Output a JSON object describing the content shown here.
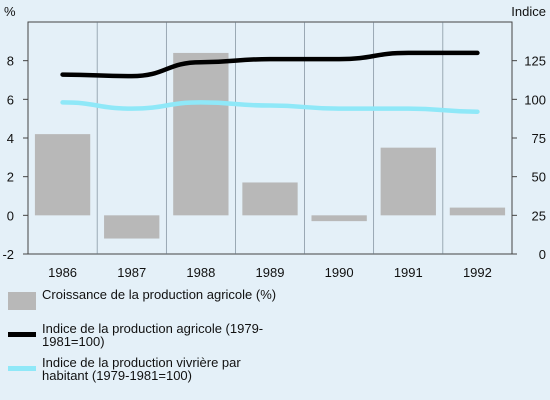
{
  "chart_data": {
    "type": "bar",
    "categories": [
      "1986",
      "1987",
      "1988",
      "1989",
      "1990",
      "1991",
      "1992"
    ],
    "left_axis": {
      "unit": "%",
      "ylim": [
        -2,
        10
      ],
      "ticks": [
        -2,
        0,
        2,
        4,
        6,
        8
      ]
    },
    "right_axis": {
      "unit": "Indice",
      "ylim": [
        0,
        150
      ],
      "ticks": [
        0,
        25,
        50,
        75,
        100,
        125
      ]
    },
    "series": [
      {
        "name": "Croissance de la production agricole (%)",
        "kind": "bar",
        "axis": "left",
        "color": "#b8b8b8",
        "values": [
          4.2,
          -1.2,
          8.4,
          1.7,
          -0.3,
          3.5,
          0.4
        ]
      },
      {
        "name": "Indice de la production agricole (1979-1981=100)",
        "kind": "line",
        "axis": "right",
        "color": "#000000",
        "values": [
          116,
          115,
          124,
          126,
          126,
          130,
          130
        ]
      },
      {
        "name": "Indice de la production vivrière par habitant (1979-1981=100)",
        "kind": "line",
        "axis": "right",
        "color": "#8fe8f8",
        "values": [
          98,
          94,
          98,
          96,
          94,
          94,
          92
        ]
      }
    ],
    "grid": false,
    "legend_position": "bottom-left"
  },
  "legend": [
    {
      "label": "Croissance de la production agricole (%)",
      "color": "#b8b8b8",
      "kind": "bar"
    },
    {
      "label": "Indice de la production agricole (1979-1981=100)",
      "color": "#000000",
      "kind": "line"
    },
    {
      "label": "Indice de la production vivrière par habitant (1979-1981=100)",
      "color": "#8fe8f8",
      "kind": "line"
    }
  ]
}
